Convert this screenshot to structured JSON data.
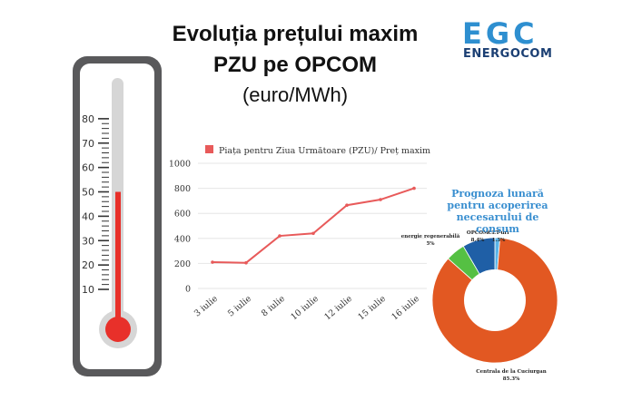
{
  "header": {
    "title_line1": "Evoluția prețului maxim",
    "title_line2": "PZU pe OPCOM",
    "title_line3": "(euro/MWh)"
  },
  "logo": {
    "main": "EGC",
    "sub": "ENERGOCOM",
    "color": "#2e8fd0"
  },
  "thermometer": {
    "scale": [
      "80",
      "70",
      "60",
      "50",
      "40",
      "30",
      "20",
      "10"
    ],
    "fill_value": 50,
    "mercury_color": "#e8302a"
  },
  "chart_data": [
    {
      "type": "line",
      "legend": "Piața pentru Ziua Următoare (PZU)/ Preț maxim",
      "color": "#e85a5a",
      "categories": [
        "3 iulie",
        "5 iulie",
        "8 iulie",
        "10 iulie",
        "12 iulie",
        "15 iulie",
        "16 iulie"
      ],
      "series": [
        {
          "name": "Piața pentru Ziua Următoare (PZU)/ Preț maxim",
          "values": [
            210,
            205,
            420,
            440,
            665,
            710,
            800
          ]
        }
      ],
      "yticks": [
        "0",
        "200",
        "400",
        "600",
        "800",
        "1000"
      ],
      "ylim": [
        0,
        1000
      ],
      "grid": true
    },
    {
      "type": "pie",
      "title": "Prognoza lunară pentru acoperirea necesarului de consum",
      "title_color": "#3a8fd0",
      "slices": [
        {
          "label": "Centrala de la Cuciurgan",
          "value_label": "85.3%",
          "value": 85.3,
          "color": "#e25822"
        },
        {
          "label": "energie regenerabilă",
          "value_label": "5%",
          "value": 5,
          "color": "#55c043"
        },
        {
          "label": "OPCOM",
          "value_label": "8.4%",
          "value": 8.4,
          "color": "#1f5fa6"
        },
        {
          "label": "CET-uri",
          "value_label": "1.3%",
          "value": 1.3,
          "color": "#5ab4e8"
        }
      ]
    }
  ]
}
